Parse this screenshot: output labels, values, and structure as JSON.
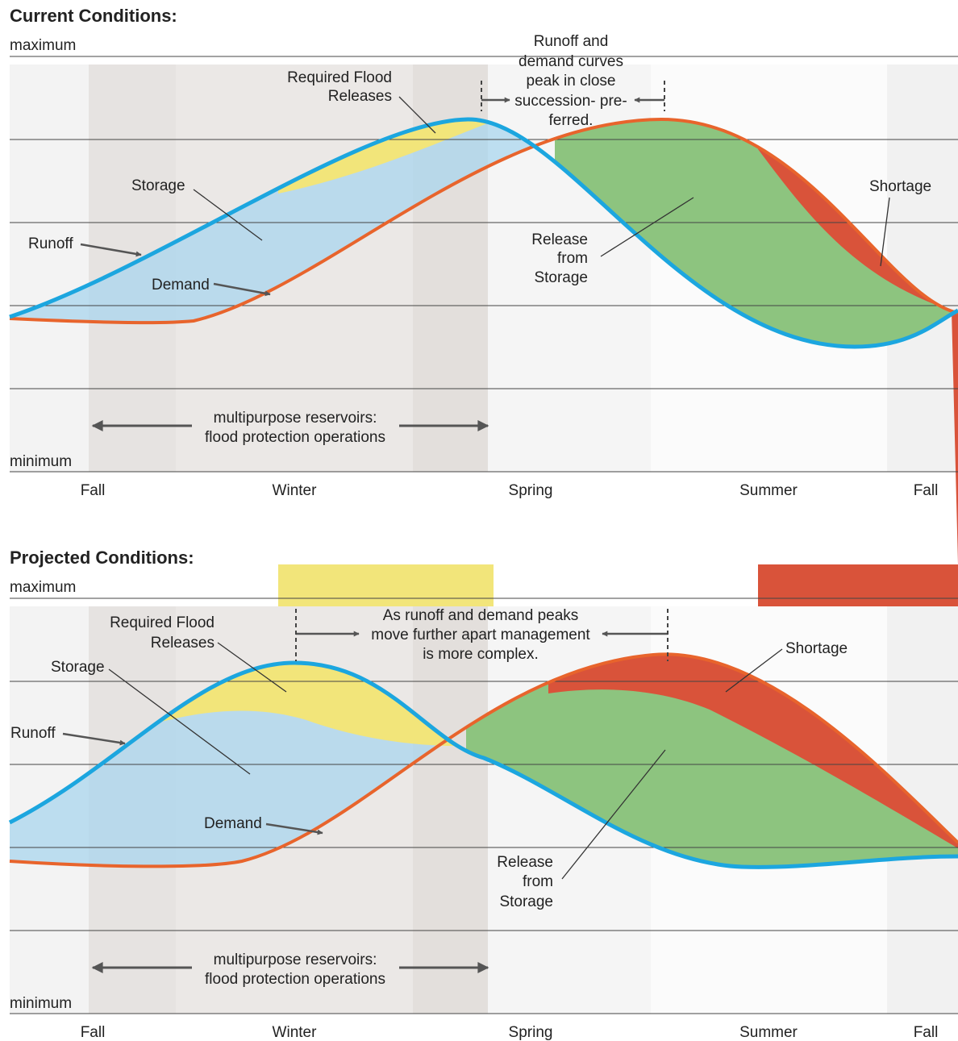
{
  "panels": [
    {
      "title": "Current Conditions:",
      "axis_max": "maximum",
      "axis_min": "minimum",
      "seasons": [
        "Fall",
        "Winter",
        "Spring",
        "Summer",
        "Fall"
      ],
      "flood_label": [
        "Required Flood",
        "Releases"
      ],
      "peak_note": [
        "Runoff and",
        "demand curves",
        "peak in close",
        "succession- pre-",
        "ferred."
      ],
      "storage_label": "Storage",
      "runoff_label": "Runoff",
      "demand_label": "Demand",
      "release_label": [
        "Release",
        "from",
        "Storage"
      ],
      "shortage_label": "Shortage",
      "operations_note": [
        "multipurpose reservoirs:",
        "flood protection operations"
      ]
    },
    {
      "title": "Projected Conditions:",
      "axis_max": "maximum",
      "axis_min": "minimum",
      "seasons": [
        "Fall",
        "Winter",
        "Spring",
        "Summer",
        "Fall"
      ],
      "flood_label": [
        "Required Flood",
        "Releases"
      ],
      "peak_note": [
        "As runoff and demand peaks",
        "move further apart management",
        "is more complex."
      ],
      "storage_label": "Storage",
      "runoff_label": "Runoff",
      "demand_label": "Demand",
      "release_label": [
        "Release",
        "from",
        "Storage"
      ],
      "shortage_label": "Shortage",
      "operations_note": [
        "multipurpose reservoirs:",
        "flood protection operations"
      ]
    }
  ]
}
